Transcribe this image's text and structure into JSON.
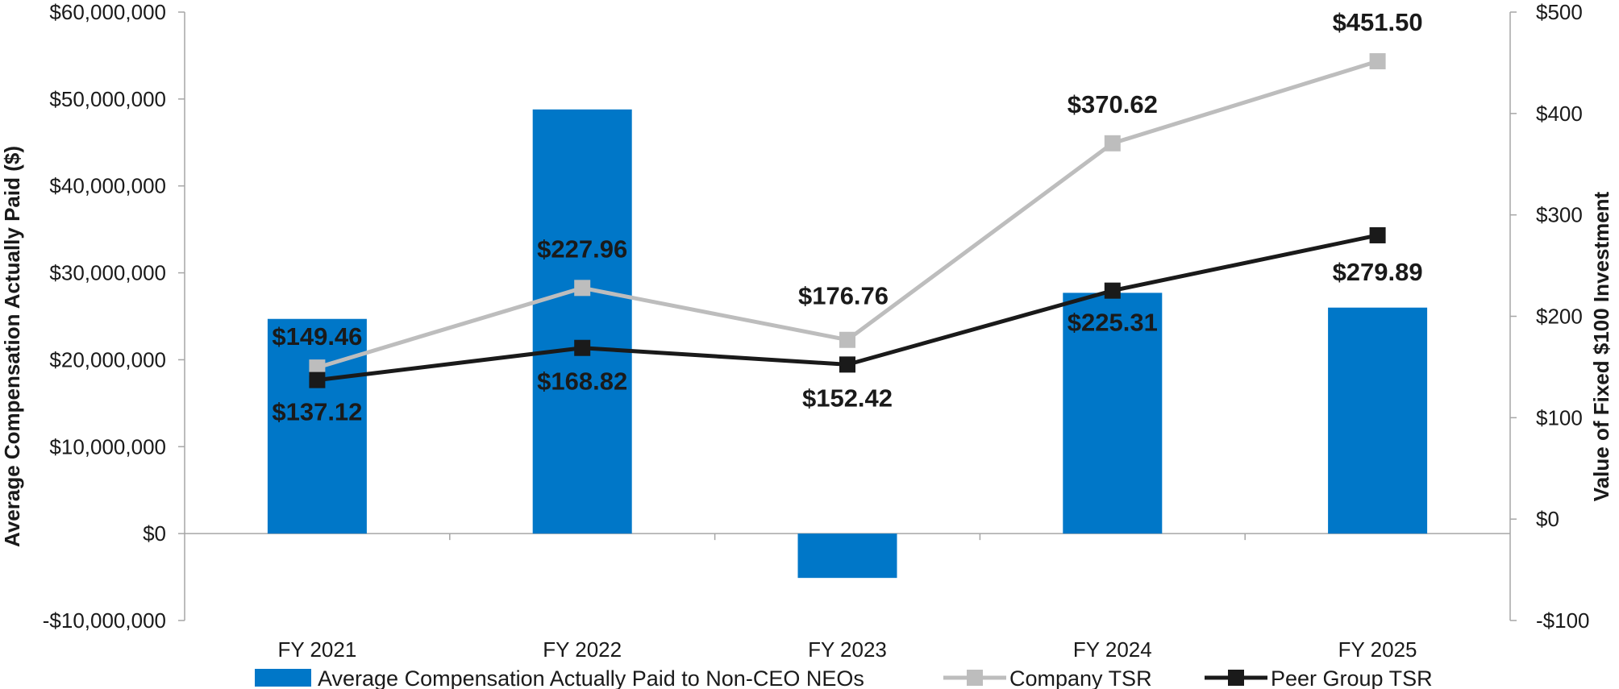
{
  "chart_data": {
    "type": "bar+line",
    "categories": [
      "FY 2021",
      "FY 2022",
      "FY 2023",
      "FY 2024",
      "FY 2025"
    ],
    "bar_series": {
      "name": "Average Compensation Actually Paid to Non-CEO NEOs",
      "values": [
        24700000,
        48800000,
        -5100000,
        27700000,
        26000000
      ],
      "color": "#0077C8"
    },
    "line_series": [
      {
        "name": "Company TSR",
        "values": [
          149.46,
          227.96,
          176.76,
          370.62,
          451.5
        ],
        "labels": [
          "$149.46",
          "$227.96",
          "$176.76",
          "$370.62",
          "$451.50"
        ],
        "color": "#BDBDBD"
      },
      {
        "name": "Peer Group TSR",
        "values": [
          137.12,
          168.82,
          152.42,
          225.31,
          279.89
        ],
        "labels": [
          "$137.12",
          "$168.82",
          "$152.42",
          "$225.31",
          "$279.89"
        ],
        "color": "#1A1A1A"
      }
    ],
    "left_axis": {
      "label": "Average Compensation Actually Paid ($)",
      "range": [
        -10000000,
        60000000
      ],
      "ticks": [
        60000000,
        50000000,
        40000000,
        30000000,
        20000000,
        10000000,
        0,
        -10000000
      ],
      "tick_labels": [
        "$60,000,000",
        "$50,000,000",
        "$40,000,000",
        "$30,000,000",
        "$20,000,000",
        "$10,000,000",
        "$0",
        "-$10,000,000"
      ]
    },
    "right_axis": {
      "label": "Value of Fixed $100 Investment",
      "range": [
        -100,
        500
      ],
      "ticks": [
        500,
        400,
        300,
        200,
        100,
        0,
        -100
      ],
      "tick_labels": [
        "$500",
        "$400",
        "$300",
        "$200",
        "$100",
        "$0",
        "-$100"
      ]
    },
    "legend": {
      "position": "bottom",
      "entries": [
        "Average Compensation Actually Paid to Non-CEO NEOs",
        "Company TSR",
        "Peer Group TSR"
      ]
    },
    "grid": false
  }
}
